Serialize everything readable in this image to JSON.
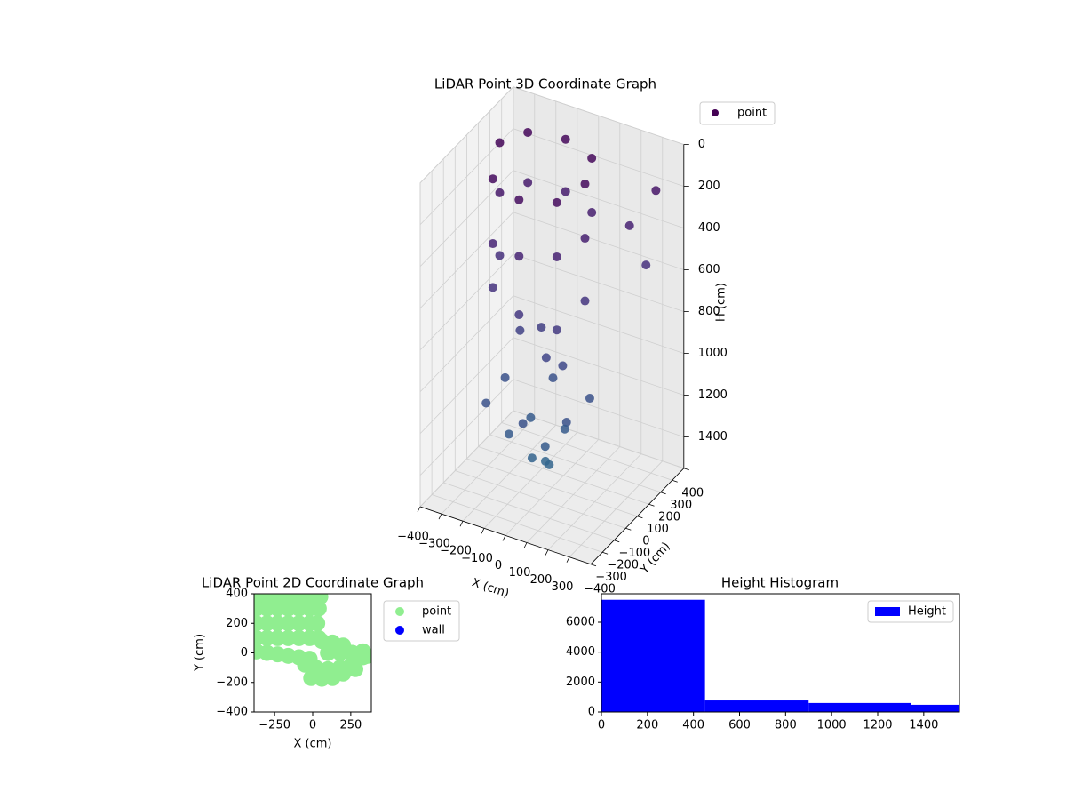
{
  "chart_data": [
    {
      "type": "scatter3d",
      "title": "LiDAR Point 3D Coordinate Graph",
      "xlabel": "X (cm)",
      "ylabel": "Y (cm)",
      "zlabel": "H (cm)",
      "xlim": [
        -400,
        400
      ],
      "ylim": [
        -400,
        400
      ],
      "zlim": [
        0,
        1550
      ],
      "zinverted": true,
      "legend": "upper right",
      "xticks": [
        {
          "value": -400,
          "label": "−400"
        },
        {
          "value": -300,
          "label": "−300"
        },
        {
          "value": -200,
          "label": "−200"
        },
        {
          "value": -100,
          "label": "−100"
        },
        0,
        100,
        200,
        300
      ],
      "yticks": [
        {
          "value": -400,
          "label": "−400"
        },
        {
          "value": -300,
          "label": "−300"
        },
        {
          "value": -200,
          "label": "−200"
        },
        {
          "value": -100,
          "label": "−100"
        },
        0,
        100,
        200,
        300,
        400
      ],
      "zticks": [
        0,
        200,
        400,
        600,
        800,
        1000,
        1200,
        1400
      ],
      "series": [
        {
          "name": "point",
          "colormap": "viridis",
          "x": [
            -300,
            -250,
            -100,
            50,
            100,
            50,
            -100,
            -250,
            -300,
            -250,
            -100,
            50,
            100,
            50,
            -100,
            -250,
            -300,
            -250,
            -100,
            50,
            100,
            200,
            250,
            280,
            -50,
            0,
            -150,
            50,
            -200,
            0,
            150,
            150,
            -50,
            -220,
            -120,
            50,
            60,
            -100,
            -50,
            20,
            -20
          ],
          "y": [
            100,
            250,
            300,
            250,
            100,
            -50,
            -100,
            -50,
            100,
            250,
            300,
            250,
            100,
            -50,
            -100,
            -50,
            100,
            -50,
            -100,
            -50,
            100,
            300,
            350,
            380,
            0,
            -50,
            0,
            0,
            -200,
            -250,
            -150,
            50,
            100,
            0,
            -150,
            -150,
            0,
            0,
            -80,
            -60,
            -20
          ],
          "z": [
            60,
            80,
            90,
            100,
            120,
            140,
            150,
            130,
            300,
            320,
            340,
            360,
            380,
            400,
            420,
            440,
            600,
            650,
            700,
            750,
            680,
            400,
            600,
            250,
            800,
            900,
            850,
            950,
            1100,
            1100,
            1100,
            1100,
            1100,
            1100,
            1250,
            1250,
            1250,
            1250,
            1380,
            1400,
            1420
          ]
        }
      ]
    },
    {
      "type": "scatter",
      "title": "LiDAR Point 2D Coordinate Graph",
      "xlabel": "X (cm)",
      "ylabel": "Y (cm)",
      "xlim": [
        -385,
        385
      ],
      "ylim": [
        -400,
        400
      ],
      "legend": "outside right",
      "xticks": [
        {
          "value": -250,
          "label": "−250"
        },
        0,
        250
      ],
      "yticks": [
        {
          "value": -400,
          "label": "−400"
        },
        {
          "value": -200,
          "label": "−200"
        },
        0,
        200,
        400
      ],
      "series": [
        {
          "name": "point",
          "color": "#90ee90",
          "x": [
            -370,
            -300,
            -230,
            -160,
            -90,
            -20,
            50,
            -370,
            -300,
            -230,
            -160,
            -90,
            -20,
            40,
            -370,
            -300,
            -230,
            -160,
            -90,
            -20,
            30,
            -370,
            -300,
            -230,
            -160,
            -90,
            -20,
            40,
            -370,
            -300,
            -230,
            -160,
            -90,
            -20,
            60,
            130,
            200,
            -50,
            20,
            100,
            180,
            260,
            330,
            360,
            -10,
            60,
            130,
            200,
            280,
            100,
            180,
            260,
            330,
            150
          ],
          "y": [
            380,
            380,
            380,
            380,
            380,
            380,
            380,
            300,
            300,
            300,
            300,
            300,
            300,
            300,
            200,
            200,
            200,
            200,
            200,
            200,
            200,
            100,
            100,
            100,
            100,
            100,
            100,
            100,
            10,
            0,
            -10,
            -20,
            -30,
            -40,
            80,
            70,
            50,
            -80,
            -100,
            -110,
            -100,
            -70,
            -30,
            -20,
            -170,
            -175,
            -170,
            -140,
            -110,
            0,
            0,
            0,
            10,
            40
          ]
        },
        {
          "name": "wall",
          "color": "#0000ff",
          "x": [],
          "y": []
        }
      ]
    },
    {
      "type": "histogram",
      "title": "Height Histogram",
      "xlim": [
        0,
        1555
      ],
      "ylim": [
        0,
        7900
      ],
      "legend": "upper right",
      "xticks": [
        0,
        200,
        400,
        600,
        800,
        1000,
        1200,
        1400
      ],
      "yticks": [
        0,
        2000,
        4000,
        6000
      ],
      "bins": [
        0,
        450,
        900,
        1345,
        1555
      ],
      "series": [
        {
          "name": "Height",
          "color": "#0000ff",
          "values": [
            7500,
            770,
            600,
            480
          ]
        }
      ]
    }
  ]
}
